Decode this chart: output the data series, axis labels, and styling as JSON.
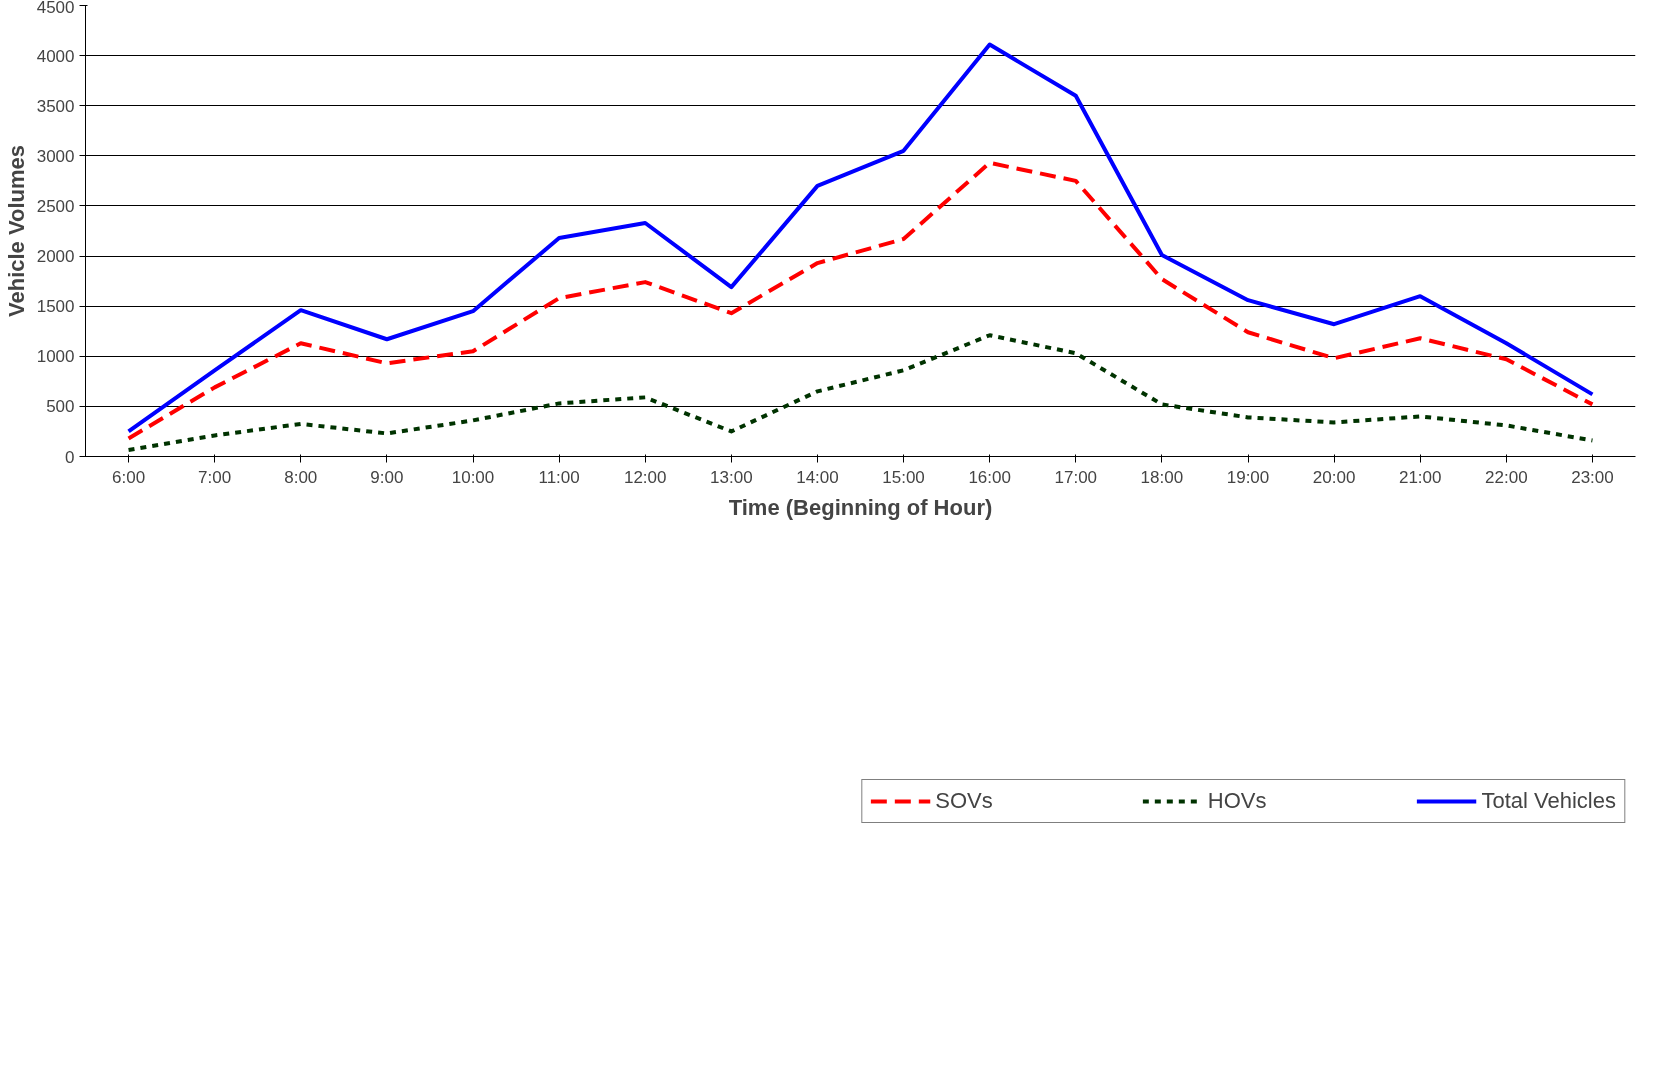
{
  "chart_data": {
    "type": "line",
    "xlabel": "Time (Beginning of Hour)",
    "ylabel": "Vehicle Volumes",
    "categories": [
      "6:00",
      "7:00",
      "8:00",
      "9:00",
      "10:00",
      "11:00",
      "12:00",
      "13:00",
      "14:00",
      "15:00",
      "16:00",
      "17:00",
      "18:00",
      "19:00",
      "20:00",
      "21:00",
      "22:00",
      "23:00"
    ],
    "series": [
      {
        "name": "SOVs",
        "color": "#ff0000",
        "line_style": "dashed",
        "values": [
          180,
          690,
          1130,
          930,
          1050,
          1580,
          1740,
          1430,
          1930,
          2170,
          2930,
          2750,
          1770,
          1240,
          980,
          1180,
          970,
          520
        ]
      },
      {
        "name": "HOVs",
        "color": "#003300",
        "line_style": "dotted",
        "values": [
          65,
          210,
          325,
          230,
          360,
          530,
          590,
          250,
          650,
          860,
          1210,
          1030,
          520,
          390,
          340,
          400,
          310,
          160
        ]
      },
      {
        "name": "Total Vehicles",
        "color": "#0000ff",
        "line_style": "solid",
        "values": [
          250,
          860,
          1460,
          1170,
          1450,
          2180,
          2330,
          1690,
          2700,
          3050,
          4110,
          3600,
          2010,
          1560,
          1320,
          1600,
          1130,
          620
        ]
      }
    ],
    "ylim": [
      0,
      4500
    ],
    "yticks": [
      0,
      500,
      1000,
      1500,
      2000,
      2500,
      3000,
      3500,
      4000,
      4500
    ],
    "grid": "y",
    "legend": "bottom",
    "marker": "none"
  }
}
